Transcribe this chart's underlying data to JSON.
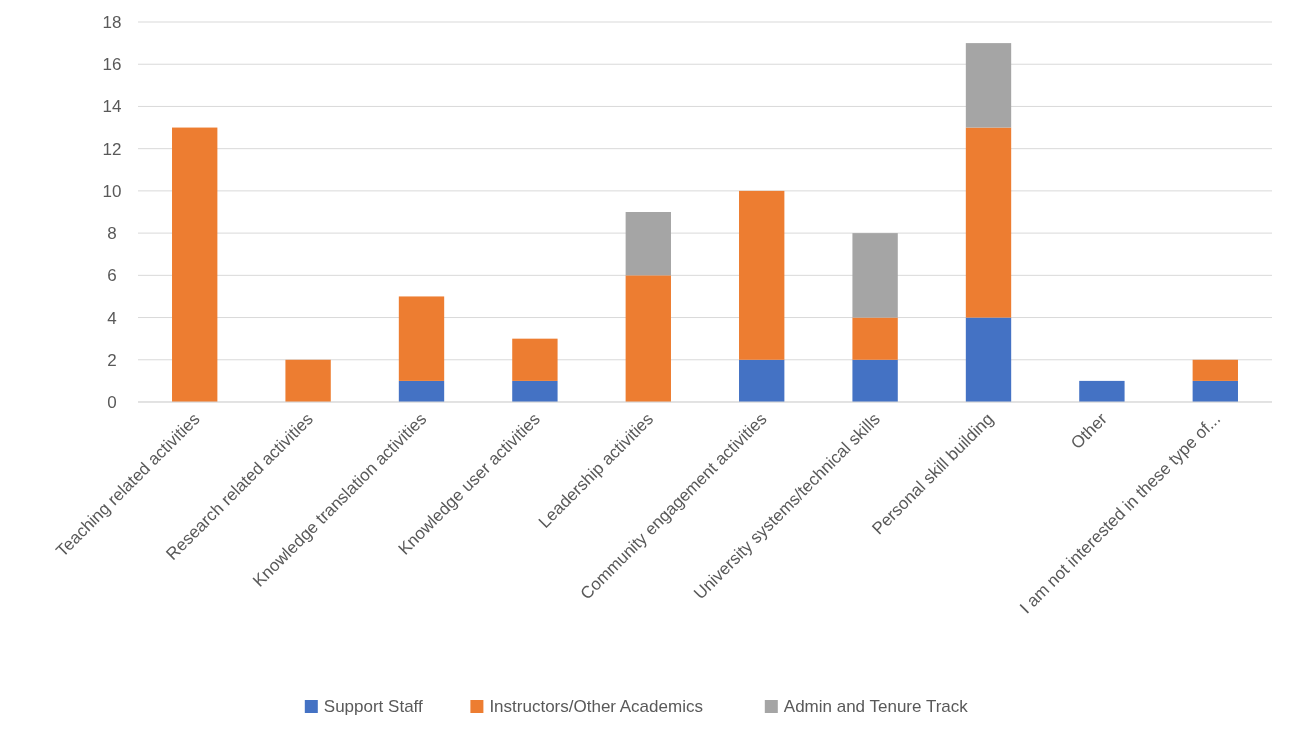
{
  "chart_data": {
    "type": "bar",
    "stacked": true,
    "categories": [
      "Teaching related activities",
      "Research related activities",
      "Knowledge translation activities",
      "Knowledge user activities",
      "Leadership activities",
      "Community engagement activities",
      "University systems/technical skills",
      "Personal skill building",
      "Other",
      "I am not interested in these type of..."
    ],
    "series": [
      {
        "name": "Support Staff",
        "color": "#4472c4",
        "values": [
          null,
          null,
          1,
          1,
          null,
          2,
          2,
          4,
          1,
          1
        ]
      },
      {
        "name": "Instructors/Other Academics",
        "color": "#ed7d31",
        "values": [
          13,
          2,
          4,
          2,
          6,
          8,
          2,
          9,
          null,
          1
        ]
      },
      {
        "name": "Admin and Tenure Track",
        "color": "#a5a5a5",
        "values": [
          null,
          null,
          null,
          null,
          3,
          null,
          4,
          4,
          null,
          null
        ]
      }
    ],
    "ylim": [
      0,
      18
    ],
    "yticks": [
      0,
      2,
      4,
      6,
      8,
      10,
      12,
      14,
      16,
      18
    ],
    "grid": "y",
    "legend": "bottom"
  }
}
